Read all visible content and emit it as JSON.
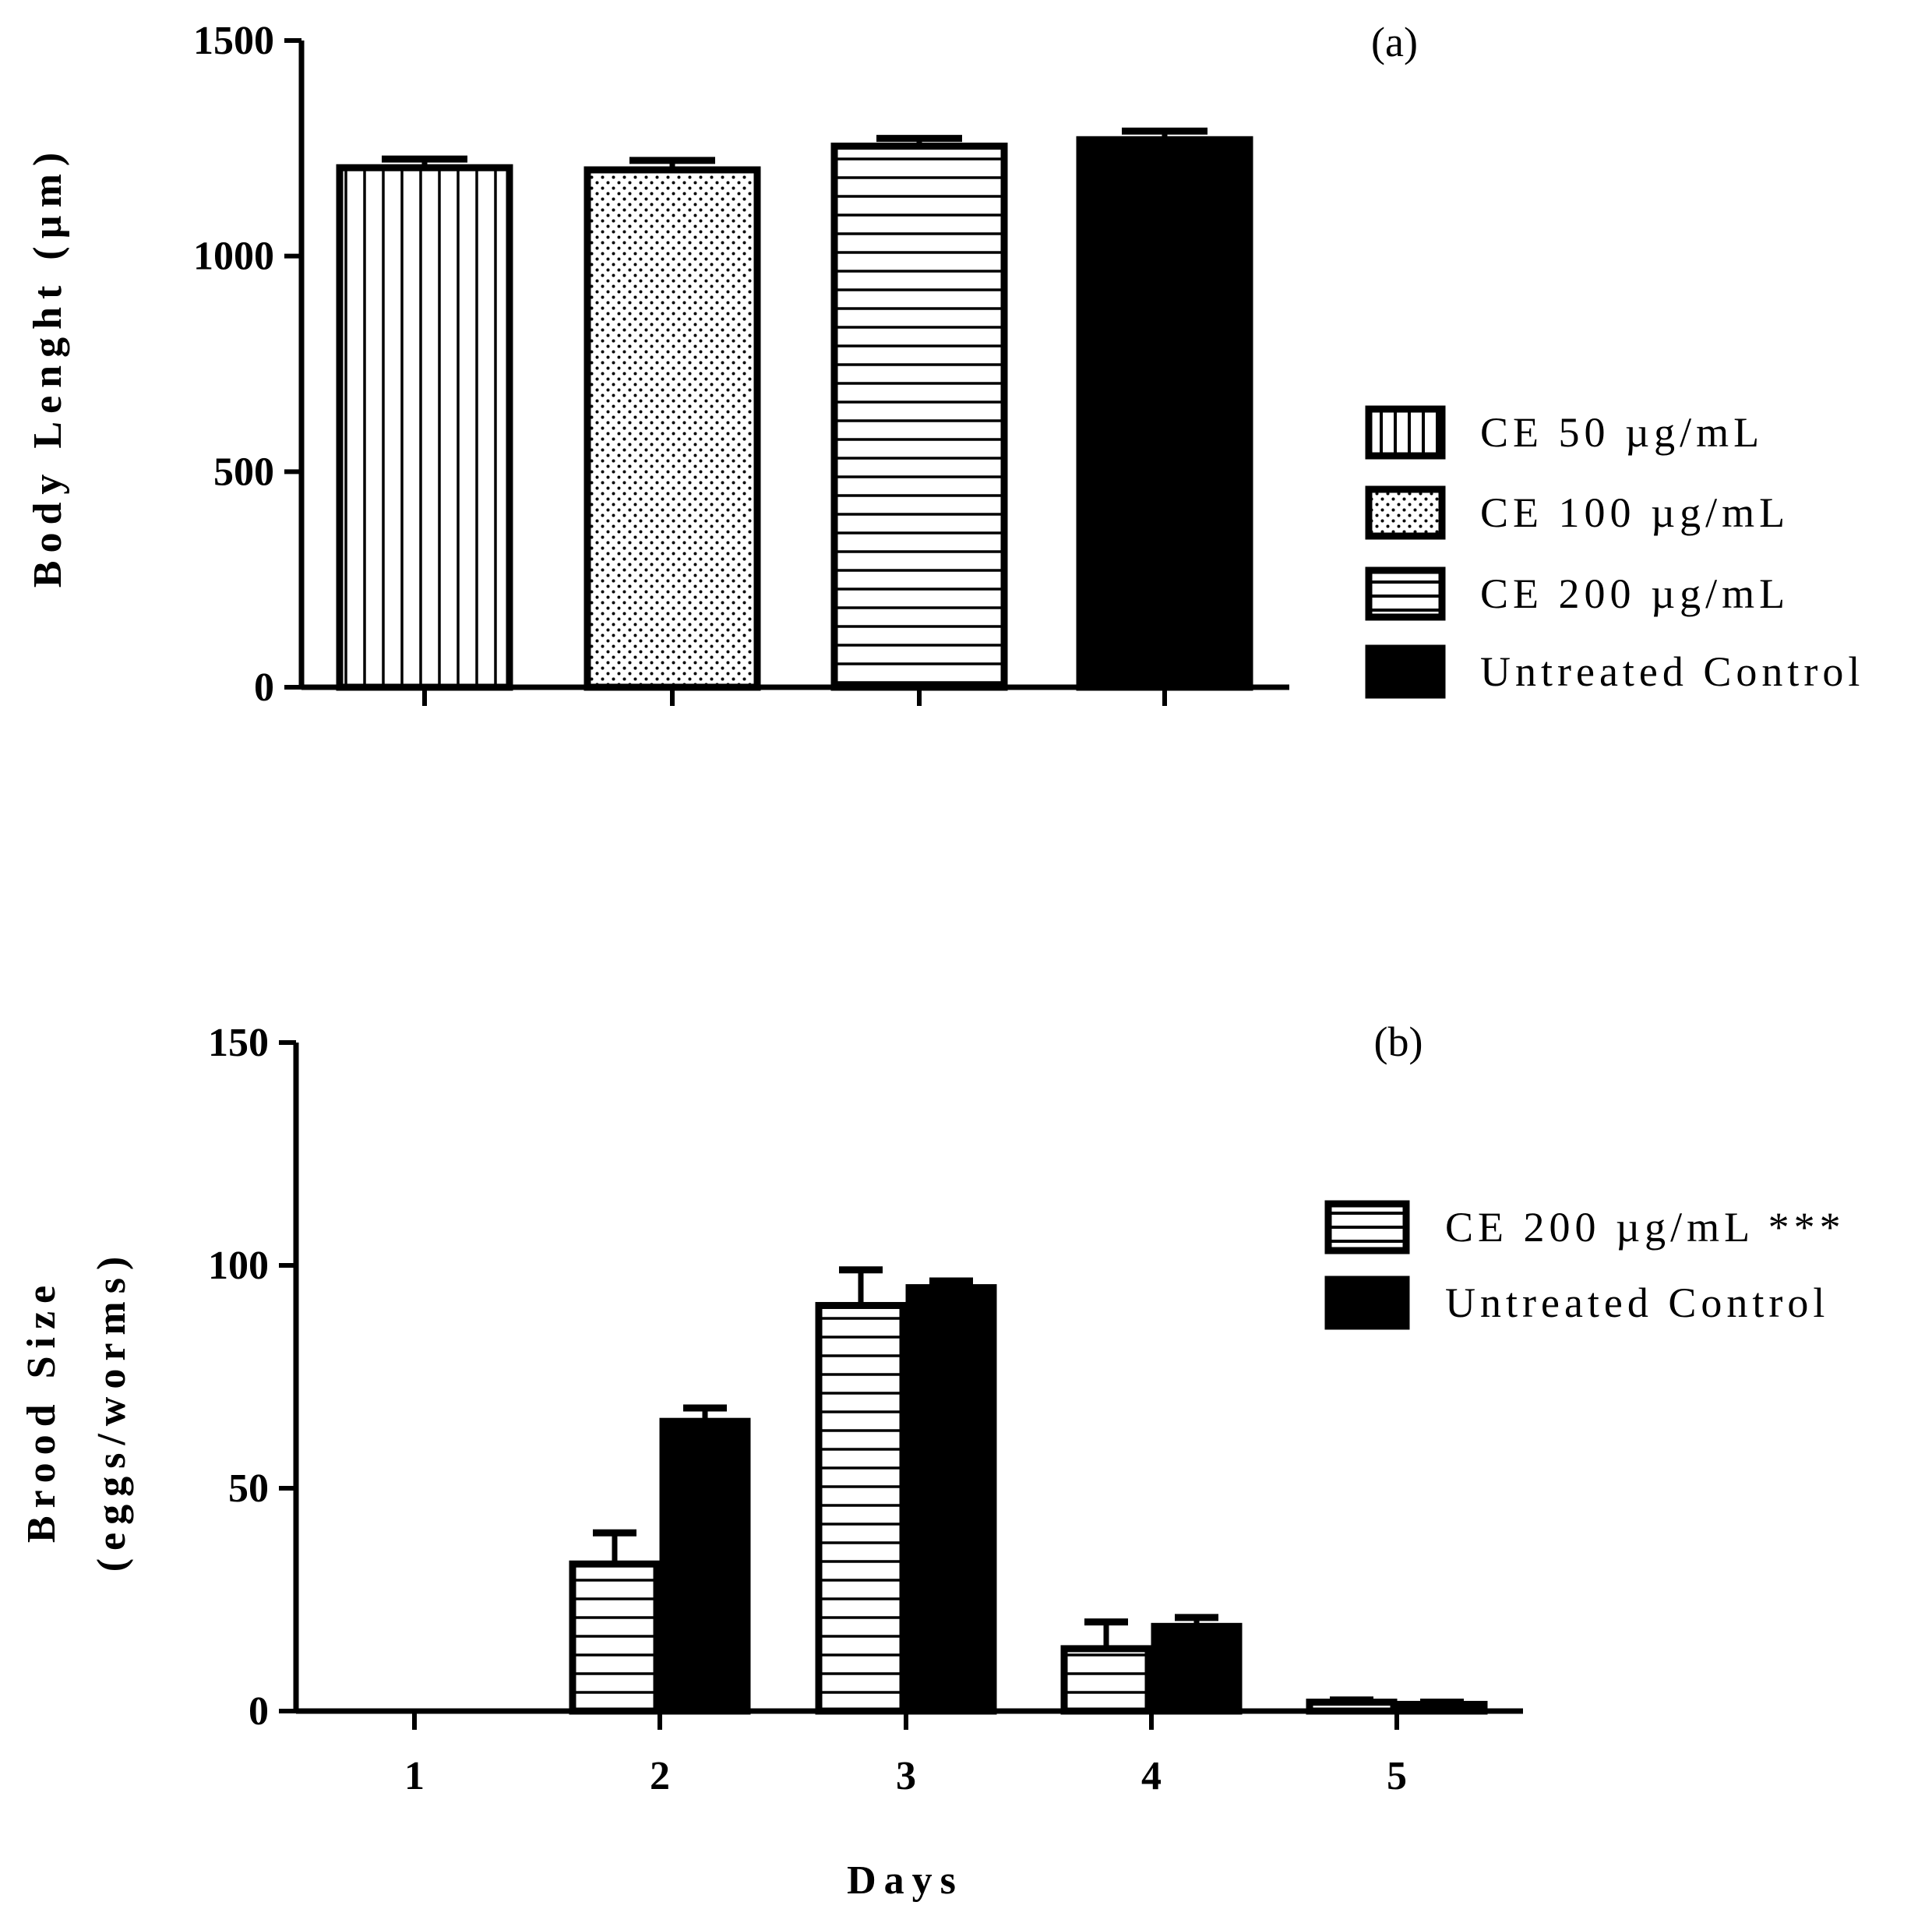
{
  "chart_data": [
    {
      "type": "bar",
      "panel_label": "(a)",
      "ylabel": "Body Lenght (µm)",
      "xlabel": "",
      "ylim": [
        0,
        1500
      ],
      "yticks": [
        0,
        500,
        1000,
        1500
      ],
      "series": [
        {
          "name": "CE 50 µg/mL",
          "values": [
            1205
          ],
          "error": [
            20
          ],
          "pattern": "vertical"
        },
        {
          "name": "CE 100 µg/mL",
          "values": [
            1200
          ],
          "error": [
            22
          ],
          "pattern": "dots"
        },
        {
          "name": "CE 200 µg/mL",
          "values": [
            1255
          ],
          "error": [
            18
          ],
          "pattern": "horizontal"
        },
        {
          "name": "Untreated Control",
          "values": [
            1270
          ],
          "error": [
            20
          ],
          "pattern": "solid"
        }
      ],
      "legend_position": "right"
    },
    {
      "type": "bar",
      "panel_label": "(b)",
      "ylabel_line1": "Brood Size",
      "ylabel_line2": "(eggs/worms)",
      "xlabel": "Days",
      "categories": [
        "1",
        "2",
        "3",
        "4",
        "5"
      ],
      "ylim": [
        0,
        150
      ],
      "yticks": [
        0,
        50,
        100,
        150
      ],
      "series": [
        {
          "name": "CE 200 µg/mL ***",
          "values": [
            0,
            33,
            91,
            14,
            2
          ],
          "error": [
            0,
            7,
            8,
            6,
            0.5
          ],
          "pattern": "horizontal"
        },
        {
          "name": "Untreated Control",
          "values": [
            0,
            65,
            95,
            19,
            1.5
          ],
          "error": [
            0,
            3,
            1.5,
            2,
            0.5
          ],
          "pattern": "solid"
        }
      ],
      "legend_position": "right"
    }
  ]
}
